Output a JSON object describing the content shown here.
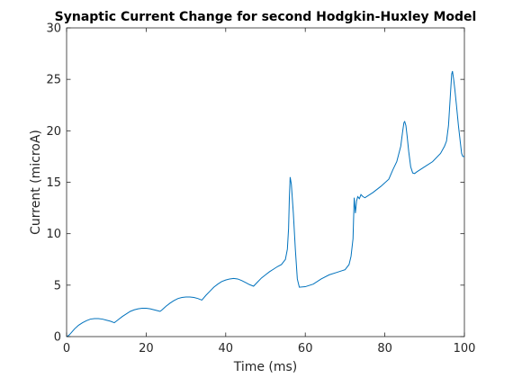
{
  "chart_data": {
    "type": "line",
    "title": "Synaptic Current Change for second Hodgkin-Huxley Model",
    "xlabel": "Time (ms)",
    "ylabel": "Current (microA)",
    "xlim": [
      0,
      100
    ],
    "ylim": [
      0,
      30
    ],
    "xticks": [
      "0",
      "20",
      "40",
      "60",
      "80",
      "100"
    ],
    "yticks": [
      "0",
      "5",
      "10",
      "15",
      "20",
      "25",
      "30"
    ],
    "grid": false,
    "legend": "none",
    "colors": {
      "line": "#0072bd",
      "axes": "#262626",
      "background": "#ffffff"
    },
    "series": [
      {
        "x": [
          0,
          0.5,
          1,
          2,
          3,
          4,
          5,
          6,
          7,
          8,
          9,
          10,
          11,
          12,
          13,
          14,
          15,
          16,
          17,
          18,
          19,
          20,
          21,
          22,
          23,
          23.5,
          24,
          25,
          26,
          27,
          28,
          29,
          30,
          31,
          32,
          33,
          34,
          35,
          36,
          37,
          38,
          39,
          40,
          41,
          42,
          43,
          44,
          45,
          46,
          47,
          48,
          49,
          50,
          51,
          52,
          53,
          54,
          55,
          55.5,
          55.8,
          56,
          56.2,
          56.5,
          57,
          57.5,
          58,
          58.5,
          60,
          62,
          64,
          66,
          68,
          70,
          71,
          71.5,
          72,
          72.3,
          72.6,
          72.9,
          73.2,
          73.6,
          74,
          74.5,
          75,
          77,
          79,
          81,
          82,
          83,
          84,
          84.5,
          84.8,
          85,
          85.3,
          85.6,
          86,
          86.5,
          87,
          87.5,
          88,
          90,
          92,
          94,
          95,
          95.5,
          96,
          96.4,
          96.8,
          97,
          97.3,
          97.6,
          98,
          98.5,
          99,
          99.3,
          99.6,
          100
        ],
        "values": [
          0,
          0.1,
          0.3,
          0.75,
          1.1,
          1.35,
          1.55,
          1.7,
          1.75,
          1.75,
          1.7,
          1.6,
          1.5,
          1.35,
          1.65,
          1.95,
          2.2,
          2.45,
          2.6,
          2.7,
          2.75,
          2.75,
          2.7,
          2.6,
          2.5,
          2.45,
          2.6,
          2.95,
          3.25,
          3.5,
          3.7,
          3.8,
          3.85,
          3.85,
          3.8,
          3.7,
          3.55,
          4.0,
          4.4,
          4.8,
          5.1,
          5.35,
          5.5,
          5.6,
          5.65,
          5.6,
          5.45,
          5.25,
          5.05,
          4.9,
          5.3,
          5.7,
          6.0,
          6.3,
          6.55,
          6.8,
          7.0,
          7.5,
          8.5,
          10.5,
          13.5,
          15.5,
          14.8,
          12.0,
          8.5,
          5.6,
          4.8,
          4.85,
          5.1,
          5.6,
          6.0,
          6.25,
          6.5,
          7.0,
          7.8,
          9.5,
          13.5,
          12.0,
          13.2,
          13.6,
          13.4,
          13.8,
          13.6,
          13.5,
          14.0,
          14.6,
          15.3,
          16.2,
          17.0,
          18.5,
          20.0,
          20.8,
          20.9,
          20.5,
          19.5,
          18.0,
          16.5,
          15.9,
          15.85,
          16.0,
          16.5,
          17.0,
          17.8,
          18.5,
          19.0,
          20.5,
          23.0,
          25.5,
          25.8,
          25.0,
          24.0,
          22.5,
          20.5,
          18.8,
          17.8,
          17.5,
          17.5
        ]
      }
    ]
  }
}
